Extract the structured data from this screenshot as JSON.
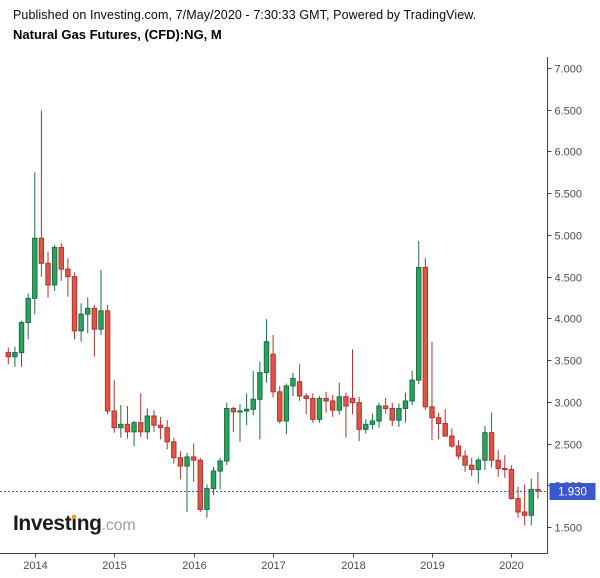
{
  "header": {
    "published_line": "Published on Investing.com, 7/May/2020 - 7:30:33 GMT, Powered by TradingView.",
    "title": "Natural Gas Futures, (CFD):NG, M"
  },
  "logo": {
    "part1": "Invest",
    "dotless_i": "ı",
    "part2": "ng",
    "suffix": ".com",
    "dot_color": "#f7941d"
  },
  "price_label": {
    "text": "1.930",
    "value": 1.93,
    "badge_color": "#3a57d0",
    "text_color": "#ffffff",
    "line_color": "#4060c0"
  },
  "chart_data": {
    "type": "candlestick",
    "title": "Natural Gas Futures, (CFD):NG, M",
    "symbol": "Natural Gas Futures (CFD):NG",
    "timeframe": "M",
    "ylim": [
      1.5,
      7.0
    ],
    "y_tick_step": 0.5,
    "y_tick_labels": [
      "7.000",
      "6.500",
      "6.000",
      "5.500",
      "5.000",
      "4.500",
      "4.000",
      "3.500",
      "3.000",
      "2.500",
      "2.000",
      "1.500"
    ],
    "x_tick_years": [
      {
        "label": "2014",
        "month": "2014-01"
      },
      {
        "label": "2015",
        "month": "2015-01"
      },
      {
        "label": "2016",
        "month": "2016-01"
      },
      {
        "label": "2017",
        "month": "2017-01"
      },
      {
        "label": "2018",
        "month": "2018-01"
      },
      {
        "label": "2019",
        "month": "2019-01"
      },
      {
        "label": "2020",
        "month": "2020-01"
      }
    ],
    "last_price": 1.93,
    "grid": false,
    "legend": "none",
    "colors": {
      "up_fill": "#2aa45c",
      "up_stroke": "#1b6f42",
      "down_fill": "#e2544a",
      "down_stroke": "#ad362e",
      "axis_line": "#444444",
      "axis_text": "#4d4d4d"
    },
    "months": [
      "2013-09",
      "2013-10",
      "2013-11",
      "2013-12",
      "2014-01",
      "2014-02",
      "2014-03",
      "2014-04",
      "2014-05",
      "2014-06",
      "2014-07",
      "2014-08",
      "2014-09",
      "2014-10",
      "2014-11",
      "2014-12",
      "2015-01",
      "2015-02",
      "2015-03",
      "2015-04",
      "2015-05",
      "2015-06",
      "2015-07",
      "2015-08",
      "2015-09",
      "2015-10",
      "2015-11",
      "2015-12",
      "2016-01",
      "2016-02",
      "2016-03",
      "2016-04",
      "2016-05",
      "2016-06",
      "2016-07",
      "2016-08",
      "2016-09",
      "2016-10",
      "2016-11",
      "2016-12",
      "2017-01",
      "2017-02",
      "2017-03",
      "2017-04",
      "2017-05",
      "2017-06",
      "2017-07",
      "2017-08",
      "2017-09",
      "2017-10",
      "2017-11",
      "2017-12",
      "2018-01",
      "2018-02",
      "2018-03",
      "2018-04",
      "2018-05",
      "2018-06",
      "2018-07",
      "2018-08",
      "2018-09",
      "2018-10",
      "2018-11",
      "2018-12",
      "2019-01",
      "2019-02",
      "2019-03",
      "2019-04",
      "2019-05",
      "2019-06",
      "2019-07",
      "2019-08",
      "2019-09",
      "2019-10",
      "2019-11",
      "2019-12",
      "2020-01",
      "2020-02",
      "2020-03",
      "2020-04",
      "2020-05"
    ],
    "ohlc": [
      [
        3.59,
        3.65,
        3.45,
        3.54
      ],
      [
        3.54,
        3.66,
        3.42,
        3.59
      ],
      [
        3.59,
        3.97,
        3.42,
        3.95
      ],
      [
        3.95,
        4.3,
        3.75,
        4.24
      ],
      [
        4.24,
        5.75,
        4.05,
        4.96
      ],
      [
        4.96,
        6.49,
        4.5,
        4.66
      ],
      [
        4.66,
        4.8,
        4.25,
        4.4
      ],
      [
        4.4,
        4.88,
        4.33,
        4.85
      ],
      [
        4.85,
        4.9,
        4.45,
        4.59
      ],
      [
        4.59,
        4.72,
        4.26,
        4.5
      ],
      [
        4.5,
        4.55,
        3.75,
        3.85
      ],
      [
        3.85,
        4.18,
        3.72,
        4.05
      ],
      [
        4.05,
        4.25,
        3.82,
        4.12
      ],
      [
        4.12,
        4.16,
        3.54,
        3.87
      ],
      [
        3.87,
        4.58,
        3.8,
        4.09
      ],
      [
        4.09,
        4.16,
        2.85,
        2.89
      ],
      [
        2.89,
        3.26,
        2.63,
        2.69
      ],
      [
        2.69,
        2.96,
        2.57,
        2.73
      ],
      [
        2.73,
        2.95,
        2.56,
        2.64
      ],
      [
        2.64,
        2.77,
        2.47,
        2.75
      ],
      [
        2.75,
        3.1,
        2.58,
        2.64
      ],
      [
        2.64,
        2.92,
        2.55,
        2.83
      ],
      [
        2.83,
        2.9,
        2.64,
        2.72
      ],
      [
        2.72,
        2.82,
        2.55,
        2.69
      ],
      [
        2.69,
        2.78,
        2.43,
        2.52
      ],
      [
        2.52,
        2.57,
        2.26,
        2.33
      ],
      [
        2.33,
        2.41,
        2.07,
        2.23
      ],
      [
        2.23,
        2.39,
        1.68,
        2.34
      ],
      [
        2.34,
        2.5,
        2.04,
        2.3
      ],
      [
        2.3,
        2.33,
        1.68,
        1.71
      ],
      [
        1.71,
        2.01,
        1.61,
        1.96
      ],
      [
        1.96,
        2.22,
        1.88,
        2.17
      ],
      [
        2.17,
        2.33,
        1.95,
        2.29
      ],
      [
        2.29,
        2.99,
        2.24,
        2.92
      ],
      [
        2.92,
        2.94,
        2.64,
        2.88
      ],
      [
        2.88,
        2.97,
        2.52,
        2.89
      ],
      [
        2.89,
        3.1,
        2.72,
        2.91
      ],
      [
        2.91,
        3.37,
        2.84,
        3.03
      ],
      [
        3.03,
        3.48,
        2.55,
        3.35
      ],
      [
        3.35,
        3.99,
        3.23,
        3.72
      ],
      [
        3.57,
        3.8,
        3.05,
        3.12
      ],
      [
        3.12,
        3.19,
        2.74,
        2.77
      ],
      [
        2.77,
        3.22,
        2.61,
        3.19
      ],
      [
        3.19,
        3.35,
        3.07,
        3.28
      ],
      [
        3.24,
        3.45,
        3.01,
        3.07
      ],
      [
        3.07,
        3.1,
        2.85,
        3.04
      ],
      [
        3.04,
        3.1,
        2.75,
        2.79
      ],
      [
        2.79,
        3.07,
        2.75,
        3.04
      ],
      [
        3.04,
        3.12,
        2.87,
        3.01
      ],
      [
        3.01,
        3.08,
        2.82,
        2.9
      ],
      [
        2.9,
        3.23,
        2.85,
        3.06
      ],
      [
        3.06,
        3.11,
        2.57,
        2.95
      ],
      [
        3.04,
        3.63,
        2.85,
        2.99
      ],
      [
        2.99,
        3.06,
        2.53,
        2.67
      ],
      [
        2.67,
        2.79,
        2.62,
        2.73
      ],
      [
        2.73,
        2.86,
        2.67,
        2.77
      ],
      [
        2.77,
        2.99,
        2.69,
        2.95
      ],
      [
        2.95,
        3.05,
        2.86,
        2.92
      ],
      [
        2.92,
        2.99,
        2.71,
        2.78
      ],
      [
        2.78,
        2.98,
        2.7,
        2.92
      ],
      [
        2.92,
        3.11,
        2.75,
        3.01
      ],
      [
        3.01,
        3.37,
        2.96,
        3.26
      ],
      [
        3.26,
        4.93,
        3.21,
        4.61
      ],
      [
        4.61,
        4.72,
        2.9,
        2.94
      ],
      [
        2.94,
        3.72,
        2.54,
        2.81
      ],
      [
        2.81,
        2.87,
        2.55,
        2.74
      ],
      [
        2.74,
        2.91,
        2.58,
        2.59
      ],
      [
        2.59,
        2.68,
        2.45,
        2.47
      ],
      [
        2.47,
        2.54,
        2.31,
        2.35
      ],
      [
        2.35,
        2.42,
        2.16,
        2.24
      ],
      [
        2.24,
        2.33,
        2.11,
        2.19
      ],
      [
        2.19,
        2.33,
        2.02,
        2.3
      ],
      [
        2.3,
        2.71,
        2.18,
        2.63
      ],
      [
        2.63,
        2.87,
        2.21,
        2.3
      ],
      [
        2.3,
        2.42,
        2.1,
        2.2
      ],
      [
        2.2,
        2.36,
        2.09,
        2.19
      ],
      [
        2.19,
        2.24,
        1.83,
        1.84
      ],
      [
        1.84,
        1.98,
        1.61,
        1.68
      ],
      [
        1.68,
        2.01,
        1.52,
        1.64
      ],
      [
        1.64,
        2.08,
        1.52,
        1.95
      ],
      [
        1.95,
        2.16,
        1.84,
        1.93
      ]
    ]
  }
}
